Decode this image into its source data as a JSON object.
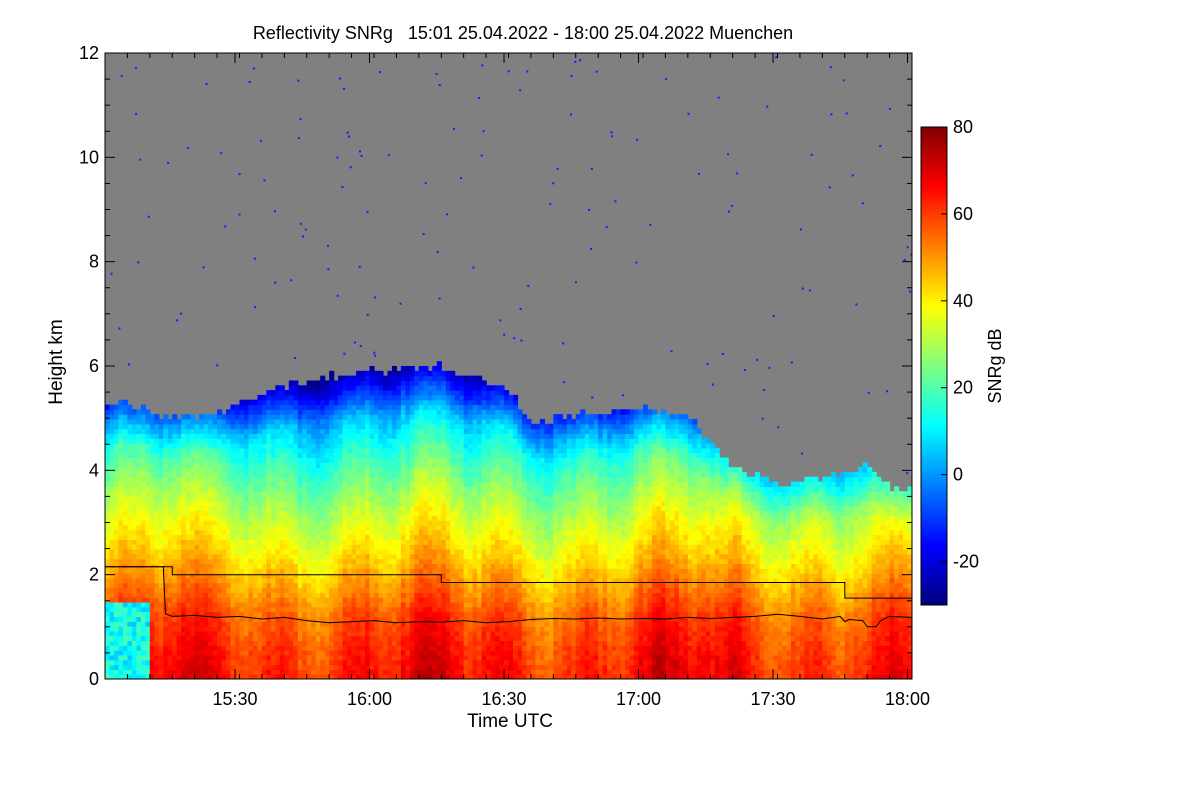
{
  "chart_data": {
    "type": "heatmap",
    "title": "Reflectivity SNRg   15:01 25.04.2022 - 18:00 25.04.2022 Muenchen",
    "xlabel": "Time UTC",
    "ylabel": "Height km",
    "colorbar_label": "SNRg dB",
    "xlim": [
      0,
      180
    ],
    "ylim": [
      0,
      12
    ],
    "x_ticks": [
      {
        "value": 29,
        "label": "15:30"
      },
      {
        "value": 59,
        "label": "16:00"
      },
      {
        "value": 89,
        "label": "16:30"
      },
      {
        "value": 119,
        "label": "17:00"
      },
      {
        "value": 149,
        "label": "17:30"
      },
      {
        "value": 179,
        "label": "18:00"
      }
    ],
    "y_ticks": [
      {
        "value": 0,
        "label": "0"
      },
      {
        "value": 2,
        "label": "2"
      },
      {
        "value": 4,
        "label": "4"
      },
      {
        "value": 6,
        "label": "6"
      },
      {
        "value": 8,
        "label": "8"
      },
      {
        "value": 10,
        "label": "10"
      },
      {
        "value": 12,
        "label": "12"
      }
    ],
    "colorbar_range": [
      -30,
      80
    ],
    "colorbar_ticks": [
      {
        "value": -20,
        "label": "-20"
      },
      {
        "value": 0,
        "label": "0"
      },
      {
        "value": 20,
        "label": "20"
      },
      {
        "value": 40,
        "label": "40"
      },
      {
        "value": 60,
        "label": "60"
      },
      {
        "value": 80,
        "label": "80"
      }
    ],
    "colors": {
      "no_signal": "#808080",
      "colormap": [
        "#00007f",
        "#0000ff",
        "#007fff",
        "#00ffff",
        "#7fff7f",
        "#ffff00",
        "#ff7f00",
        "#ff0000",
        "#7f0000"
      ]
    },
    "echo_top_km": {
      "time_min": [
        0,
        5,
        15,
        25,
        30,
        40,
        50,
        60,
        70,
        75,
        80,
        85,
        90,
        95,
        100,
        110,
        120,
        130,
        140,
        150,
        155,
        160,
        165,
        170,
        175,
        180
      ],
      "height_km": [
        5.2,
        5.3,
        5.0,
        5.1,
        5.3,
        5.6,
        5.8,
        5.9,
        6.0,
        6.0,
        5.8,
        5.7,
        5.6,
        4.9,
        5.0,
        5.1,
        5.2,
        5.0,
        4.1,
        3.7,
        3.8,
        3.9,
        3.9,
        4.1,
        3.7,
        3.6
      ]
    },
    "snr_profile": {
      "height_km": [
        0,
        0.6,
        1.2,
        1.8,
        2.4,
        3.0,
        3.6,
        4.2,
        4.8,
        5.4,
        6.0
      ],
      "snr_db": [
        65,
        62,
        58,
        50,
        42,
        35,
        27,
        18,
        8,
        -5,
        -15
      ]
    },
    "series": [
      {
        "x": [
          0,
          13.5,
          13.5,
          15,
          15,
          75,
          75,
          165,
          165,
          180
        ],
        "y": [
          2.15,
          2.15,
          2.15,
          2.15,
          2.0,
          2.0,
          1.85,
          1.85,
          1.55,
          1.55
        ]
      },
      {
        "x": [
          0,
          13,
          13.5,
          15,
          20,
          25,
          30,
          35,
          40,
          45,
          50,
          55,
          60,
          65,
          70,
          75,
          80,
          85,
          90,
          95,
          100,
          105,
          110,
          115,
          120,
          125,
          130,
          135,
          140,
          145,
          150,
          155,
          160,
          164,
          165,
          166,
          169,
          170,
          172,
          173,
          175,
          180
        ],
        "y": [
          2.15,
          2.15,
          1.25,
          1.2,
          1.22,
          1.18,
          1.2,
          1.15,
          1.18,
          1.12,
          1.08,
          1.1,
          1.12,
          1.08,
          1.1,
          1.09,
          1.12,
          1.08,
          1.1,
          1.14,
          1.16,
          1.15,
          1.17,
          1.15,
          1.16,
          1.15,
          1.18,
          1.16,
          1.18,
          1.2,
          1.24,
          1.2,
          1.15,
          1.2,
          1.1,
          1.14,
          1.12,
          1.0,
          1.0,
          1.12,
          1.2,
          1.18
        ]
      }
    ]
  }
}
